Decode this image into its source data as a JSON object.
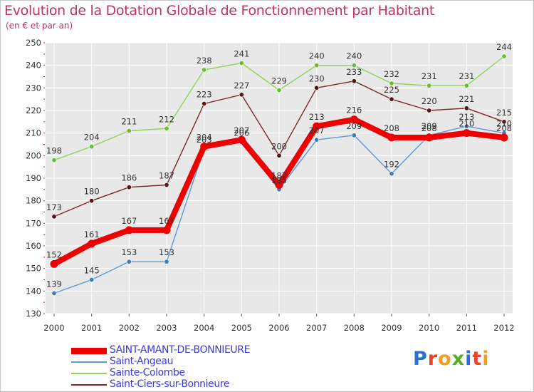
{
  "header": {
    "title": "Evolution de la Dotation Globale de Fonctionnement par Habitant",
    "subtitle": "(en € et par an)"
  },
  "logo": {
    "text": "Proxiti",
    "colors": [
      "#2a6fd6",
      "#e8452c",
      "#f0a020",
      "#5aaa2a",
      "#2a6fd6",
      "#e8452c",
      "#f0a020"
    ]
  },
  "colors": {
    "plot_bg": "#e8e8e8",
    "grid": "#ffffff",
    "tick_red": "#cc2244"
  },
  "chart_data": {
    "type": "line",
    "title": "Evolution de la Dotation Globale de Fonctionnement par Habitant",
    "subtitle": "(en € et par an)",
    "xlabel": "",
    "ylabel": "",
    "ylim": [
      130,
      250
    ],
    "yticks": [
      130,
      140,
      150,
      160,
      170,
      180,
      190,
      200,
      210,
      220,
      230,
      240,
      250
    ],
    "grid": true,
    "legend": "bottom",
    "x": [
      2000,
      2001,
      2002,
      2003,
      2004,
      2005,
      2006,
      2007,
      2008,
      2009,
      2010,
      2011,
      2012
    ],
    "series": [
      {
        "name": "Saint-Angeau",
        "color": "#5b9bd5",
        "marker": "#3a7ec0",
        "values": [
          139,
          145,
          153,
          153,
          203,
          206,
          185,
          207,
          209,
          192,
          209,
          213,
          210
        ],
        "labels": [
          "139",
          "145",
          "153",
          "153",
          "203",
          "206",
          "185",
          "207",
          "209",
          "192",
          "209",
          "213",
          "210"
        ]
      },
      {
        "name": "Sainte-Colombe",
        "color": "#8fd35a",
        "marker": "#6cbb36",
        "values": [
          198,
          204,
          211,
          212,
          238,
          241,
          229,
          240,
          240,
          232,
          231,
          231,
          244
        ],
        "labels": [
          "198",
          "204",
          "211",
          "212",
          "238",
          "241",
          "229",
          "240",
          "240",
          "232",
          "231",
          "231",
          "244"
        ]
      },
      {
        "name": "Saint-Ciers-sur-Bonnieure",
        "color": "#7a2a2a",
        "marker": "#5a1616",
        "values": [
          173,
          180,
          186,
          187,
          223,
          227,
          200,
          230,
          233,
          225,
          220,
          221,
          215
        ],
        "labels": [
          "173",
          "180",
          "186",
          "187",
          "223",
          "227",
          "200",
          "230",
          "233",
          "225",
          "220",
          "221",
          "215"
        ]
      },
      {
        "name": "SAINT-AMANT-DE-BONNIEURE",
        "color": "#ee0000",
        "marker": "#ee0000",
        "values": [
          152,
          161,
          167,
          167,
          204,
          207,
          187,
          213,
          216,
          208,
          208,
          210,
          208
        ],
        "labels": [
          "152",
          "161",
          "167",
          "167",
          "204",
          "207",
          "187",
          "213",
          "216",
          "208",
          "208",
          "210",
          "208"
        ]
      }
    ]
  },
  "legend": {
    "items": [
      {
        "label": "SAINT-AMANT-DE-BONNIEURE",
        "color": "#ee0000",
        "thick": true
      },
      {
        "label": "Saint-Angeau",
        "color": "#5b9bd5",
        "thick": false
      },
      {
        "label": "Sainte-Colombe",
        "color": "#8fd35a",
        "thick": false
      },
      {
        "label": "Saint-Ciers-sur-Bonnieure",
        "color": "#7a2a2a",
        "thick": false
      }
    ]
  }
}
